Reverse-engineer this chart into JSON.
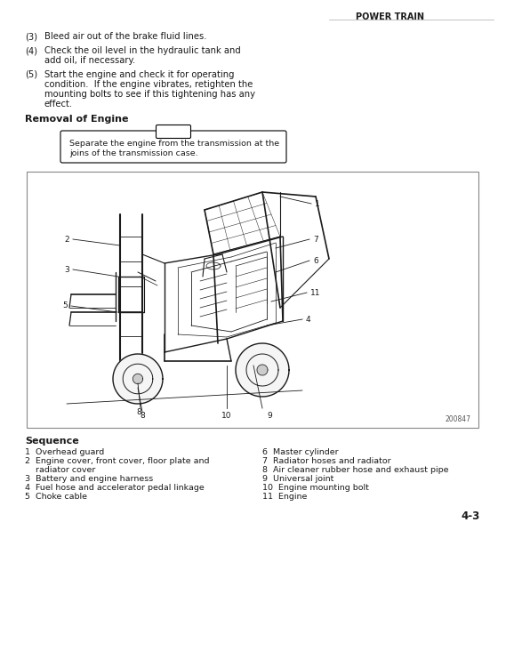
{
  "header_text": "POWER TRAIN",
  "section_title": "Removal of Engine",
  "note_text": "Separate the engine from the transmission at the\njoins of the transmission case.",
  "diagram_label": "200847",
  "sequence_title": "Sequence",
  "sequence_left": [
    "1  Overhead guard",
    "2  Engine cover, front cover, floor plate and",
    "    radiator cover",
    "3  Battery and engine harness",
    "4  Fuel hose and accelerator pedal linkage",
    "5  Choke cable"
  ],
  "sequence_right": [
    "6  Master cylinder",
    "7  Radiator hoses and radiator",
    "8  Air cleaner rubber hose and exhaust pipe",
    "9  Universal joint",
    "10  Engine mounting bolt",
    "11  Engine"
  ],
  "page_number": "4-3",
  "bg_color": "#ffffff",
  "text_color": "#1a1a1a",
  "diagram_border_color": "#888888",
  "body_font": 7.2,
  "seq_font": 6.8,
  "header_font": 7.0,
  "section_font": 8.0,
  "note_font": 6.8
}
